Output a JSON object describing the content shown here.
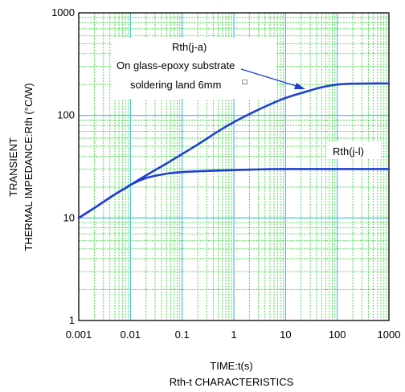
{
  "chart_data": {
    "type": "line",
    "x_scale": "log",
    "y_scale": "log",
    "xlim": [
      0.001,
      1000
    ],
    "ylim": [
      1,
      1000
    ],
    "xlabel": "TIME:t(s)",
    "ylabel_line1": "TRANSIENT",
    "ylabel_line2": "THERMAL IMPEDANCE:Rth (°C/W)",
    "caption": "Rth-t CHARACTERISTICS",
    "x_ticks": [
      "0.001",
      "0.01",
      "0.1",
      "1",
      "10",
      "100",
      "1000"
    ],
    "y_ticks": [
      "1",
      "10",
      "100",
      "1000"
    ],
    "grid": true,
    "series": [
      {
        "name": "Rth(j-a)",
        "color": "#1f3fd6",
        "x": [
          0.001,
          0.002,
          0.005,
          0.008,
          0.01,
          0.02,
          0.05,
          0.1,
          0.2,
          0.5,
          1,
          2,
          5,
          10,
          20,
          50,
          100,
          200,
          500,
          1000
        ],
        "y": [
          10,
          12.5,
          17,
          19.5,
          21,
          26,
          34,
          42,
          52,
          70,
          86,
          103,
          128,
          148,
          165,
          188,
          200,
          204,
          205,
          205
        ]
      },
      {
        "name": "Rth(j-l)",
        "color": "#1f3fd6",
        "x": [
          0.001,
          0.002,
          0.005,
          0.008,
          0.01,
          0.02,
          0.05,
          0.1,
          0.2,
          0.5,
          1,
          2,
          5,
          10,
          20,
          50,
          100,
          200,
          500,
          1000
        ],
        "y": [
          10,
          12.5,
          17,
          19.5,
          21,
          24.5,
          27,
          28,
          28.5,
          29,
          29.3,
          29.6,
          29.9,
          30,
          30,
          30,
          30,
          30,
          30,
          30
        ]
      }
    ],
    "annotations": {
      "rth_ja_line1": "Rth(j-a)",
      "rth_ja_line2": "On glass-epoxy substrate",
      "rth_ja_line3": "soldering land 6mm",
      "rth_ja_square": "□",
      "rth_jl": "Rth(j-l)"
    }
  }
}
